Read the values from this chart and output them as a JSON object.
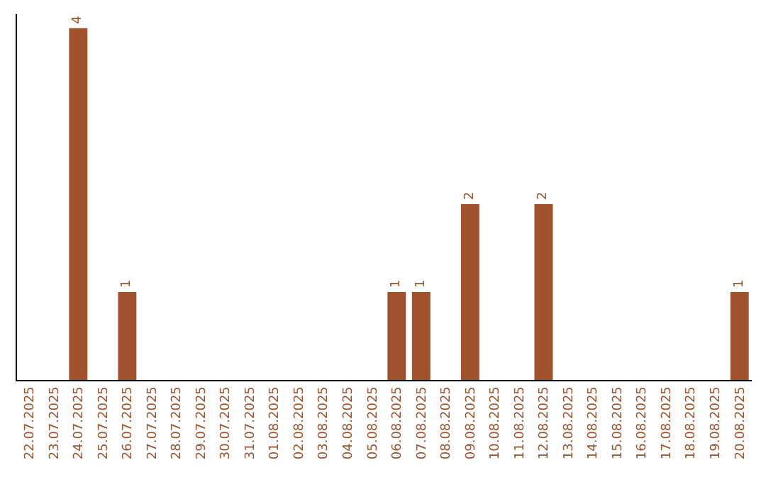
{
  "chart_data": {
    "type": "bar",
    "categories": [
      "22.07.2025",
      "23.07.2025",
      "24.07.2025",
      "25.07.2025",
      "26.07.2025",
      "27.07.2025",
      "28.07.2025",
      "29.07.2025",
      "30.07.2025",
      "31.07.2025",
      "01.08.2025",
      "02.08.2025",
      "03.08.2025",
      "04.08.2025",
      "05.08.2025",
      "06.08.2025",
      "07.08.2025",
      "08.08.2025",
      "09.08.2025",
      "10.08.2025",
      "11.08.2025",
      "12.08.2025",
      "13.08.2025",
      "14.08.2025",
      "15.08.2025",
      "16.08.2025",
      "17.08.2025",
      "18.08.2025",
      "19.08.2025",
      "20.08.2025"
    ],
    "values": [
      0,
      0,
      4,
      0,
      1,
      0,
      0,
      0,
      0,
      0,
      0,
      0,
      0,
      0,
      0,
      1,
      1,
      0,
      2,
      0,
      0,
      2,
      0,
      0,
      0,
      0,
      0,
      0,
      0,
      1
    ],
    "value_labels": [
      null,
      null,
      "4",
      null,
      "1",
      null,
      null,
      null,
      null,
      null,
      null,
      null,
      null,
      null,
      null,
      "1",
      "1",
      null,
      "2",
      null,
      null,
      "2",
      null,
      null,
      null,
      null,
      null,
      null,
      null,
      "1"
    ],
    "color": "#a0522d"
  }
}
